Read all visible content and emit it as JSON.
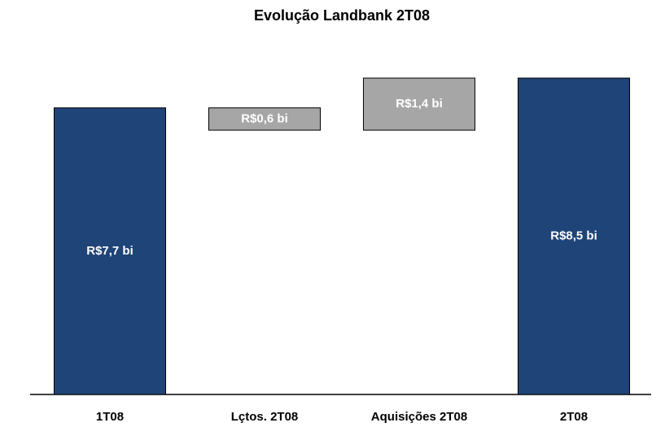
{
  "chart_data": {
    "type": "waterfall",
    "title": "Evolução Landbank 2T08",
    "categories": [
      "1T08",
      "Lçtos. 2T08",
      "Aquisições 2T08",
      "2T08"
    ],
    "values": [
      7.7,
      -0.6,
      1.4,
      8.5
    ],
    "value_labels": [
      "R$7,7 bi",
      "R$0,6 bi",
      "R$1,4 bi",
      "R$8,5 bi"
    ],
    "colors": [
      "#1f4478",
      "#a6a6a6",
      "#a6a6a6",
      "#1f4478"
    ]
  }
}
